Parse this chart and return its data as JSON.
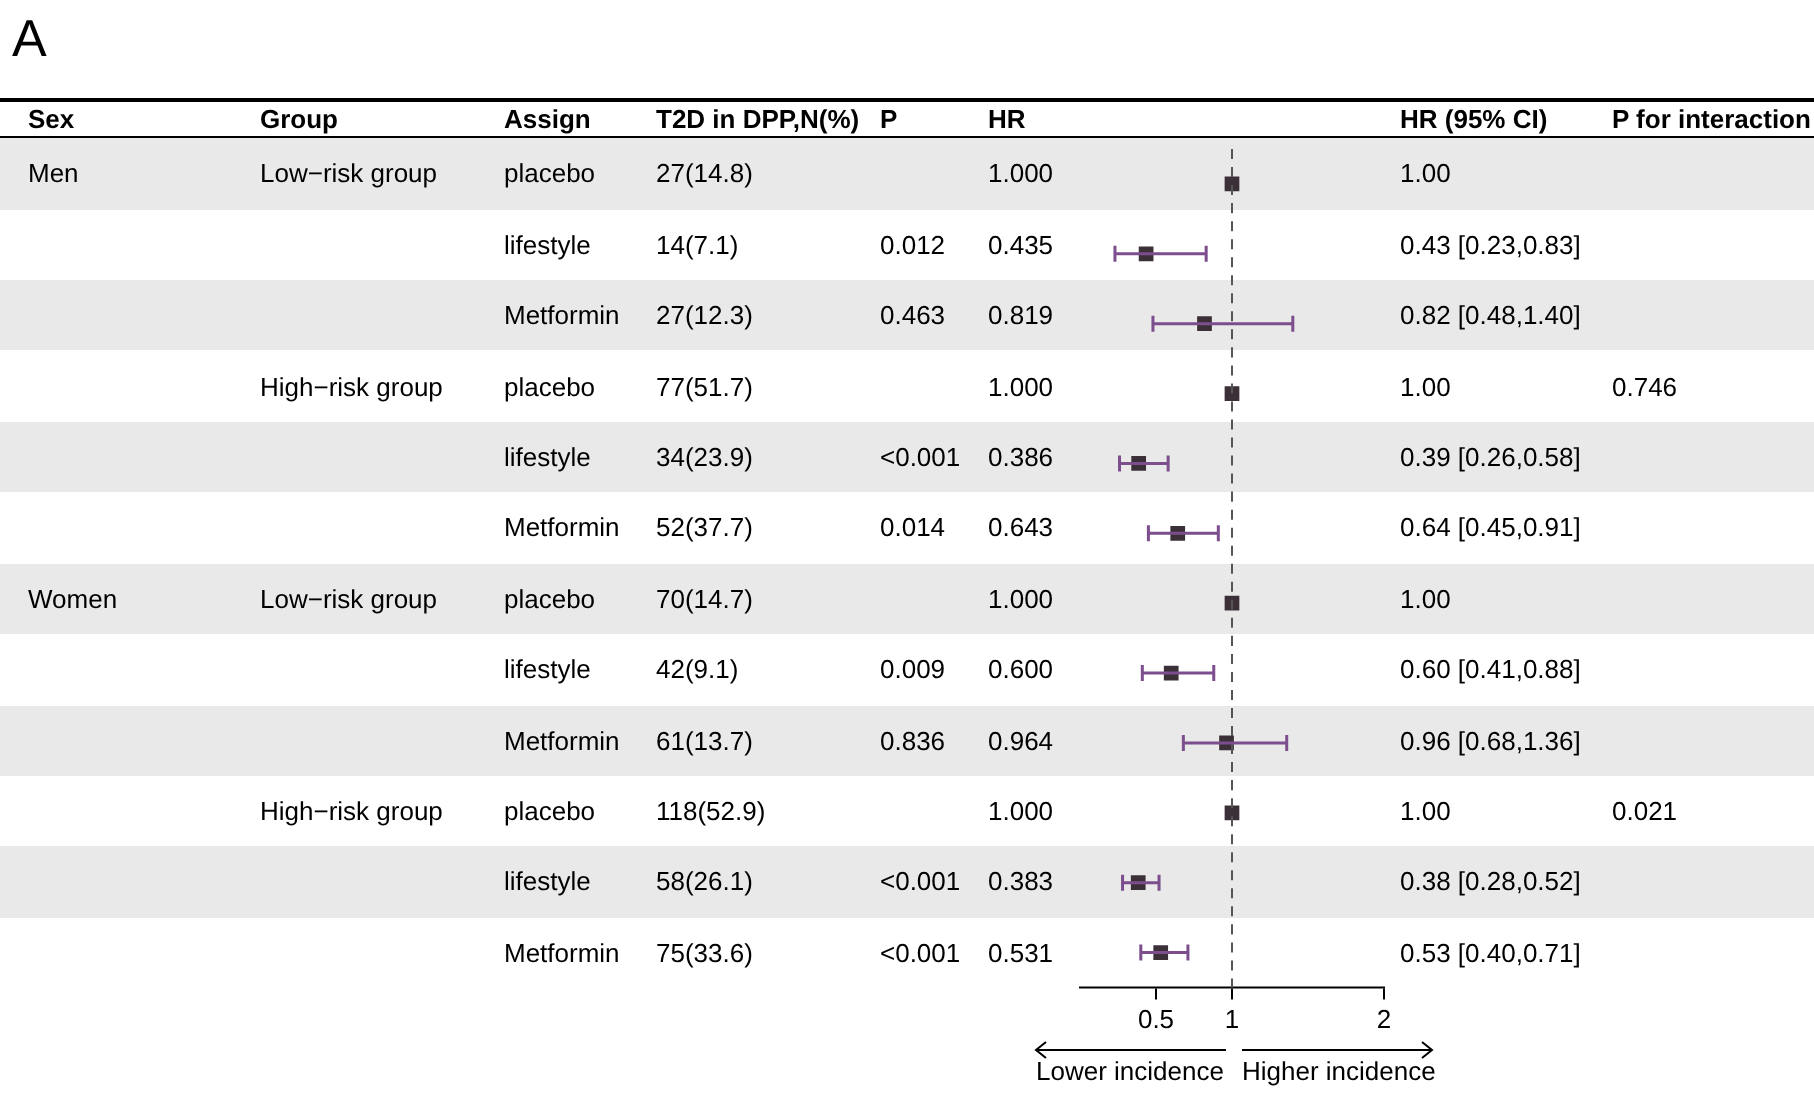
{
  "chart_data": [
    {
      "type": "other",
      "title": "A",
      "categories": [
        "Sex",
        "Group",
        "Assign",
        "T2D in DPP,N(%)",
        "P",
        "HR",
        "HR (95% CI)",
        "P for interaction"
      ],
      "annotations": [
        "Men",
        "Low−risk group",
        "placebo",
        "27(14.8)",
        null,
        "1.000",
        "1.00",
        null,
        null,
        null,
        "lifestyle",
        "14(7.1)",
        "0.012",
        "0.435",
        "0.43 [0.23,0.83]",
        null,
        null,
        null,
        "Metformin",
        "27(12.3)",
        "0.463",
        "0.819",
        "0.82 [0.48,1.40]",
        null,
        null,
        "High−risk group",
        "placebo",
        "77(51.7)",
        null,
        "1.000",
        "1.00",
        "0.746",
        null,
        null,
        "lifestyle",
        "34(23.9)",
        "<0.001",
        "0.386",
        "0.39 [0.26,0.58]",
        null,
        null,
        null,
        "Metformin",
        "52(37.7)",
        "0.014",
        "0.643",
        "0.64 [0.45,0.91]",
        null,
        "Women",
        "Low−risk group",
        "placebo",
        "70(14.7)",
        null,
        "1.000",
        "1.00",
        null,
        null,
        null,
        "lifestyle",
        "42(9.1)",
        "0.009",
        "0.600",
        "0.60 [0.41,0.88]",
        null,
        null,
        null,
        "Metformin",
        "61(13.7)",
        "0.836",
        "0.964",
        "0.96 [0.68,1.36]",
        null,
        null,
        "High−risk group",
        "placebo",
        "118(52.9)",
        null,
        "1.000",
        "1.00",
        "0.021",
        null,
        null,
        "lifestyle",
        "58(26.1)",
        "<0.001",
        "0.383",
        "0.38 [0.28,0.52]",
        null,
        null,
        null,
        "Metformin",
        "75(33.6)",
        "<0.001",
        "0.531",
        "0.53 [0.40,0.71]",
        null
      ]
    },
    {
      "type": "scatter",
      "orientation": "horizontal",
      "categories": [
        null,
        null,
        null,
        null,
        null,
        null,
        null,
        null,
        null,
        null,
        null,
        null
      ],
      "values": [
        1.0,
        0.435,
        0.819,
        1.0,
        0.386,
        0.643,
        1.0,
        0.6,
        0.964,
        1.0,
        0.383,
        0.531
      ],
      "errors": [
        null,
        [
          0.23,
          0.83
        ],
        [
          0.48,
          1.4
        ],
        null,
        [
          0.26,
          0.58
        ],
        [
          0.45,
          0.91
        ],
        null,
        [
          0.41,
          0.88
        ],
        [
          0.68,
          1.36
        ],
        null,
        [
          0.28,
          0.52
        ],
        [
          0.4,
          0.71
        ]
      ],
      "color": "#3b3038",
      "marker": "square",
      "xlim": [
        0,
        2
      ],
      "xticks": [
        0.5,
        1,
        2
      ],
      "ref_lines": [
        {
          "axis": "x",
          "value": 1,
          "line_style": "dashed",
          "color": "#555555"
        }
      ],
      "annotations": [
        "Lower incidence",
        "Higher incidence"
      ],
      "legend": false,
      "grid": false
    }
  ]
}
